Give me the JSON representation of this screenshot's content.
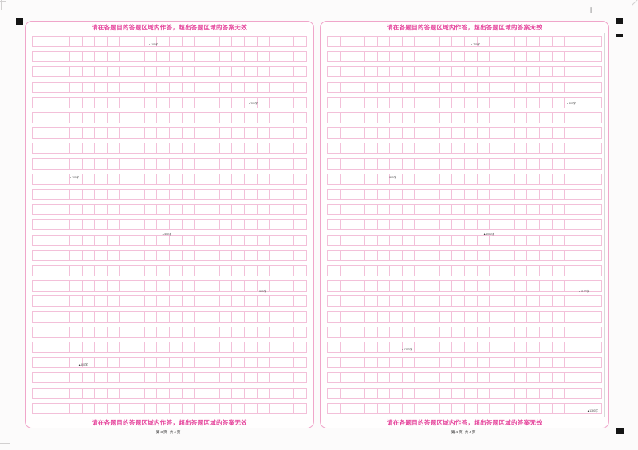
{
  "colors": {
    "accent_pink": "#e5439b",
    "border_pink": "#f0a6ca",
    "cell_pink": "#f3c0d9",
    "inner_box_gray": "#d9d9d9",
    "registration_black": "#151515"
  },
  "registration": {
    "crosshair_glyph": "+"
  },
  "pages": [
    {
      "id": "page-3",
      "header_notice": "请在各题目的答题区域内作答，超出答题区域的答案无效",
      "footer_notice": "请在各题目的答题区域内作答，超出答题区域的答案无效",
      "page_label": "第3页 共4页",
      "grid": {
        "rows": 25,
        "cols": 22
      },
      "markers": [
        {
          "row": 1,
          "col": 9.8,
          "label": "▲100字"
        },
        {
          "row": 4.8,
          "col": 17.8,
          "label": "▲200字"
        },
        {
          "row": 9.6,
          "col": 3.5,
          "label": "▲300字"
        },
        {
          "row": 13.3,
          "col": 10.9,
          "label": "▲400字"
        },
        {
          "row": 17,
          "col": 18.5,
          "label": "▲500字"
        },
        {
          "row": 21.8,
          "col": 4.2,
          "label": "▲600字"
        }
      ]
    },
    {
      "id": "page-4",
      "header_notice": "请在各题目的答题区域内作答，超出答题区域的答案无效",
      "footer_notice": "请在各题目的答题区域内作答，超出答题区域的答案无效",
      "page_label": "第4页 共4页",
      "grid": {
        "rows": 25,
        "cols": 22
      },
      "markers": [
        {
          "row": 1,
          "col": 12,
          "label": "▲700字"
        },
        {
          "row": 4.8,
          "col": 19.6,
          "label": "▲800字"
        },
        {
          "row": 9.6,
          "col": 5.3,
          "label": "▲900字"
        },
        {
          "row": 13.3,
          "col": 13,
          "label": "▲1000字"
        },
        {
          "row": 17,
          "col": 20.6,
          "label": "▲1100字"
        },
        {
          "row": 20.8,
          "col": 6.4,
          "label": "▲1200字"
        },
        {
          "row": 24.8,
          "col": 21.3,
          "label": "▲1300字"
        }
      ]
    }
  ]
}
